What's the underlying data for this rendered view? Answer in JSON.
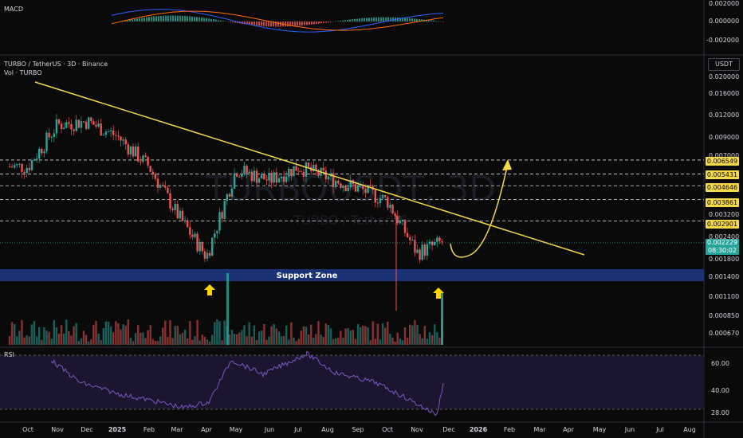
{
  "header": {
    "pair": "TURBO / TetherUS · 3D · Binance",
    "volume_label": "Vol · TURBO",
    "currency_button": "USDT",
    "watermark_main": "TURBOUSDT, 3D",
    "watermark_sub": "TURBO / TetherUS"
  },
  "macd": {
    "title": "MACD",
    "ticks": [
      "0.002000",
      "0.000000",
      "-0.002000"
    ]
  },
  "rsi": {
    "title": "RSI",
    "ticks": [
      "60.00",
      "40.00",
      "28.00"
    ]
  },
  "price_axis": {
    "ticks": [
      "0.020000",
      "0.016000",
      "0.012000",
      "0.009000",
      "0.007000",
      "0.003200",
      "0.002400",
      "0.001800",
      "0.001400",
      "0.001100",
      "0.000850",
      "0.000670"
    ]
  },
  "level_labels": [
    "0.006549",
    "0.005431",
    "0.004646",
    "0.003861",
    "0.002901"
  ],
  "current_price": {
    "value": "0.002229",
    "countdown": "08:30:02",
    "color": "#26a69a"
  },
  "support_zone": {
    "label": "Support Zone",
    "color": "#1e3a8a"
  },
  "time_axis": {
    "ticks": [
      "Oct",
      "Nov",
      "Dec",
      "2025",
      "Feb",
      "Mar",
      "Apr",
      "May",
      "Jun",
      "Jul",
      "Aug",
      "Sep",
      "Oct",
      "Nov",
      "Dec",
      "2026",
      "Feb",
      "Mar",
      "Apr",
      "May",
      "Jun",
      "Jul",
      "Aug"
    ]
  },
  "colors": {
    "up": "#26a69a",
    "down": "#ef5350",
    "trendline": "#f5d94a",
    "rsi_line": "#7e57c2",
    "macd_line": "#2962ff",
    "signal_line": "#ff6d00"
  },
  "icons": [
    "arrow-up-icon",
    "arrow-up-icon",
    "curved-arrow-icon"
  ],
  "chart_data": {
    "type": "candlestick",
    "x": [
      "2024-10",
      "2024-11",
      "2024-12",
      "2025-01",
      "2025-02",
      "2025-03",
      "2025-04",
      "2025-05",
      "2025-06",
      "2025-07",
      "2025-08",
      "2025-09",
      "2025-10",
      "2025-11",
      "2025-12"
    ],
    "close": [
      0.006,
      0.0105,
      0.011,
      0.009,
      0.006,
      0.0032,
      0.0018,
      0.0058,
      0.005,
      0.006,
      0.0052,
      0.0045,
      0.0038,
      0.0019,
      0.0022
    ],
    "horizontal_levels": [
      0.006549,
      0.005431,
      0.004646,
      0.003861,
      0.002901
    ],
    "support_zone_range": [
      0.0014,
      0.0016
    ],
    "current_price": 0.002229,
    "y_scale": "log"
  }
}
